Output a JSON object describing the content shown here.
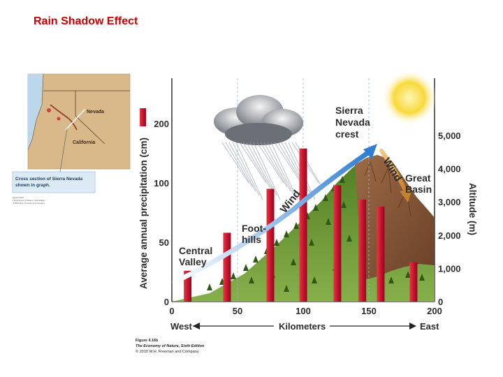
{
  "slide": {
    "title": "Rain Shadow Effect"
  },
  "inset_map": {
    "labels": {
      "nevada": "Nevada",
      "california": "California"
    },
    "caption": "Cross section of Sierra Nevada shown in graph.",
    "tiny_credit": [
      "Figure 4.16a",
      "The Economy of Nature, Sixth Edition",
      "© 2010 W.H. Freeman and Company"
    ]
  },
  "diagram_labels": {
    "sierra_crest": [
      "Sierra",
      "Nevada",
      "crest"
    ],
    "great_basin": [
      "Great",
      "Basin"
    ],
    "foothills": [
      "Foot-",
      "hills"
    ],
    "central_valley": [
      "Central",
      "Valley"
    ],
    "wind_windward": "Wind",
    "wind_leeward": "Wind",
    "west": "West",
    "east": "East",
    "kilometers": "Kilometers"
  },
  "figure_credit": {
    "figure": "Figure 4.16b",
    "book": "The Economy of Nature, Sixth Edition",
    "copyright": "© 2010 W.H. Freeman and Company"
  },
  "colors": {
    "title": "#cc0000",
    "bar": "#c8102e",
    "wind_arrow": "#4a90d9",
    "leeward_arrow": "#d69a3a",
    "mountain_green": "#5e8f2e",
    "mountain_brown": "#8b5a3c",
    "sun": "#f7d23a"
  },
  "chart_data": {
    "type": "bar",
    "xlabel": "Kilometers",
    "ylabel_left": "Average annual precipitation (cm)",
    "ylabel_right": "Altitude (m)",
    "x_ticks": [
      0,
      50,
      100,
      150,
      200
    ],
    "y_left_ticks": [
      0,
      50,
      100,
      200
    ],
    "y_right_ticks": [
      0,
      1000,
      2000,
      3000,
      4000,
      5000
    ],
    "y_right_tick_labels": [
      "0",
      "1,000",
      "2,000",
      "3,000",
      "4,000",
      "5,000"
    ],
    "xlim": [
      0,
      200
    ],
    "legend_bar_label": "",
    "bars": [
      {
        "x": 12,
        "value": 26
      },
      {
        "x": 42,
        "value": 58
      },
      {
        "x": 75,
        "value": 95
      },
      {
        "x": 100,
        "value": 158
      },
      {
        "x": 126,
        "value": 98
      },
      {
        "x": 145,
        "value": 86
      },
      {
        "x": 159,
        "value": 80
      },
      {
        "x": 184,
        "value": 33
      }
    ]
  }
}
